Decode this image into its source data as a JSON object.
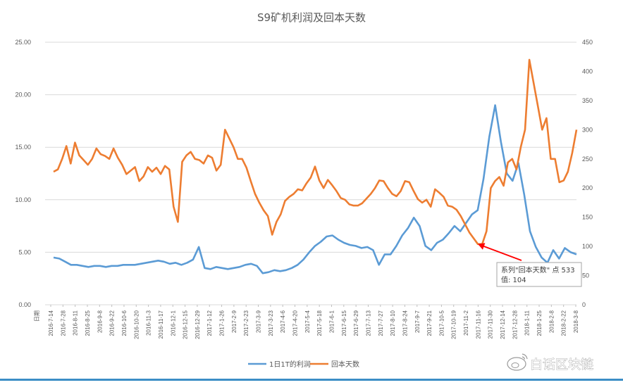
{
  "chart_data": {
    "type": "line",
    "title": "S9矿机利润及回本天数",
    "xlabel": "日期",
    "x_ticks": [
      "2016-7-14",
      "2016-7-28",
      "2016-8-11",
      "2016-8-25",
      "2016-9-8",
      "2016-9-22",
      "2016-10-6",
      "2016-10-20",
      "2016-11-3",
      "2016-11-17",
      "2016-12-1",
      "2016-12-15",
      "2016-12-29",
      "2017-1-12",
      "2017-1-26",
      "2017-2-9",
      "2017-2-23",
      "2017-3-9",
      "2017-3-23",
      "2017-4-6",
      "2017-4-20",
      "2017-5-4",
      "2017-5-18",
      "2017-6-1",
      "2017-6-15",
      "2017-6-29",
      "2017-7-13",
      "2017-7-27",
      "2017-8-10",
      "2017-8-24",
      "2017-9-7",
      "2017-9-21",
      "2017-10-5",
      "2017-10-19",
      "2017-11-2",
      "2017-11-16",
      "2017-11-30",
      "2017-12-14",
      "2017-12-28",
      "2018-1-11",
      "2018-1-25",
      "2018-2-8",
      "2018-2-22",
      "2018-3-8"
    ],
    "y_left": {
      "ticks": [
        "0.00",
        "5.00",
        "10.00",
        "15.00",
        "20.00",
        "25.00"
      ],
      "range": [
        0,
        25
      ]
    },
    "y_right": {
      "ticks": [
        "0",
        "50",
        "100",
        "150",
        "200",
        "250",
        "300",
        "350",
        "400",
        "450"
      ],
      "range": [
        0,
        450
      ]
    },
    "grid": true,
    "legend": "bottom",
    "series": [
      {
        "name": "1日1T的利润",
        "axis": "left",
        "color": "#5b9bd5",
        "values": [
          4.5,
          4.4,
          4.1,
          3.8,
          3.8,
          3.7,
          3.6,
          3.7,
          3.7,
          3.6,
          3.7,
          3.7,
          3.8,
          3.8,
          3.8,
          3.9,
          4.0,
          4.1,
          4.2,
          4.1,
          3.9,
          4.0,
          3.8,
          4.0,
          4.3,
          5.5,
          3.5,
          3.4,
          3.6,
          3.5,
          3.4,
          3.5,
          3.6,
          3.8,
          3.9,
          3.7,
          3.0,
          3.1,
          3.3,
          3.2,
          3.3,
          3.5,
          3.8,
          4.3,
          5.0,
          5.6,
          6.0,
          6.5,
          6.6,
          6.2,
          5.9,
          5.7,
          5.6,
          5.4,
          5.5,
          5.2,
          3.8,
          4.8,
          4.8,
          5.6,
          6.6,
          7.3,
          8.3,
          7.5,
          5.6,
          5.2,
          5.9,
          6.2,
          6.8,
          7.5,
          7.0,
          7.8,
          8.6,
          9.0,
          12.0,
          16.0,
          19.0,
          15.5,
          12.5,
          11.8,
          13.5,
          10.5,
          7.0,
          5.5,
          4.5,
          4.0,
          5.2,
          4.4,
          5.4,
          5.0,
          4.8
        ]
      },
      {
        "name": "回本天数",
        "axis": "right",
        "color": "#ed7d31",
        "values": [
          228,
          232,
          250,
          272,
          242,
          278,
          256,
          248,
          240,
          250,
          268,
          258,
          255,
          250,
          268,
          252,
          240,
          224,
          230,
          236,
          212,
          220,
          236,
          228,
          235,
          224,
          238,
          232,
          168,
          142,
          245,
          256,
          262,
          250,
          248,
          242,
          256,
          252,
          230,
          240,
          300,
          285,
          270,
          250,
          250,
          235,
          212,
          190,
          175,
          162,
          152,
          120,
          142,
          155,
          178,
          185,
          190,
          198,
          196,
          208,
          218,
          237,
          213,
          200,
          214,
          205,
          195,
          183,
          180,
          172,
          170,
          170,
          174,
          182,
          190,
          200,
          213,
          212,
          200,
          190,
          186,
          195,
          212,
          210,
          195,
          181,
          175,
          180,
          168,
          198,
          192,
          185,
          170,
          168,
          163,
          152,
          138,
          124,
          114,
          104,
          104,
          126,
          200,
          212,
          219,
          204,
          244,
          250,
          232,
          270,
          300,
          420,
          380,
          340,
          300,
          320,
          250,
          250,
          210,
          213,
          228,
          260,
          300
        ]
      }
    ],
    "tooltip": {
      "line1": "系列\"回本天数\" 点 533",
      "line2": "值: 104",
      "point_index": 99
    }
  },
  "watermark": {
    "text": "白话区块链",
    "icon": "weibo-icon"
  },
  "colors": {
    "grid": "#d9d9d9",
    "axis_text": "#595959",
    "bottom_rule": "#3c8ec6"
  }
}
